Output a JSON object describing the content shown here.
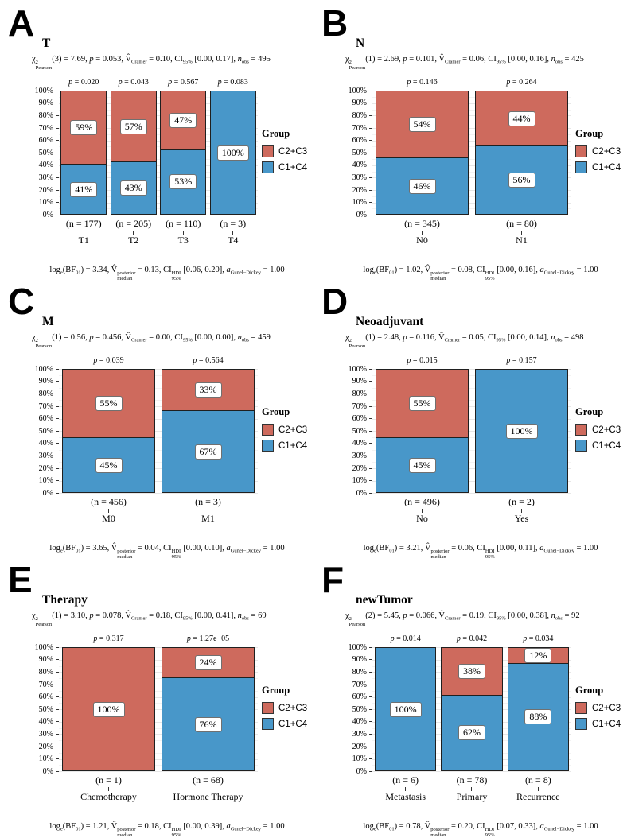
{
  "figure": {
    "legend_title": "Group",
    "groups": [
      {
        "name": "C2+C3",
        "color": "#CE6A5D"
      },
      {
        "name": "C1+C4",
        "color": "#4897C9"
      }
    ],
    "y_ticks": [
      "100%",
      "90%",
      "80%",
      "70%",
      "60%",
      "50%",
      "40%",
      "30%",
      "20%",
      "10%",
      "0%"
    ],
    "labels": {
      "chi": "χ",
      "two": "2",
      "pearson": "Pearson",
      "p": "p",
      "vhat": "V̂",
      "cramer": "Cramer",
      "ci": "CI",
      "pct95": "95%",
      "n": "n",
      "obs": "obs",
      "log": "log",
      "e": "e",
      "bf": "BF",
      "bf_sub": "01",
      "posterior": "posterior",
      "median": "median",
      "hdi": "HDI",
      "a": "a",
      "gunel_dickey": "Gunel−Dickey"
    }
  },
  "chart_data": [
    {
      "type": "bar",
      "stacked": true,
      "panel_letter": "A",
      "title": "T",
      "stats": {
        "df": "3",
        "chi2": "7.69",
        "p": "0.053",
        "v_cramer": "0.10",
        "ci95": "[0.00, 0.17]",
        "n_obs": "495"
      },
      "bayes": {
        "log_bf01": "3.34",
        "v_median": "0.13",
        "ci_hdi": "[0.06, 0.20]",
        "a_gd": "1.00"
      },
      "categories": [
        "T1",
        "T2",
        "T3",
        "T4"
      ],
      "n_labels": [
        "(n = 177)",
        "(n = 205)",
        "(n = 110)",
        "(n = 3)"
      ],
      "bar_p_values": [
        "0.020",
        "0.043",
        "0.567",
        "0.083"
      ],
      "series": [
        {
          "name": "C2+C3",
          "values": [
            59,
            57,
            47,
            0
          ]
        },
        {
          "name": "C1+C4",
          "values": [
            41,
            43,
            53,
            100
          ]
        }
      ],
      "ylim": [
        "0%",
        "100%"
      ]
    },
    {
      "type": "bar",
      "stacked": true,
      "panel_letter": "B",
      "title": "N",
      "stats": {
        "df": "1",
        "chi2": "2.69",
        "p": "0.101",
        "v_cramer": "0.06",
        "ci95": "[0.00, 0.16]",
        "n_obs": "425"
      },
      "bayes": {
        "log_bf01": "1.02",
        "v_median": "0.08",
        "ci_hdi": "[0.00, 0.16]",
        "a_gd": "1.00"
      },
      "categories": [
        "N0",
        "N1"
      ],
      "n_labels": [
        "(n = 345)",
        "(n = 80)"
      ],
      "bar_p_values": [
        "0.146",
        "0.264"
      ],
      "series": [
        {
          "name": "C2+C3",
          "values": [
            54,
            44
          ]
        },
        {
          "name": "C1+C4",
          "values": [
            46,
            56
          ]
        }
      ],
      "ylim": [
        "0%",
        "100%"
      ]
    },
    {
      "type": "bar",
      "stacked": true,
      "panel_letter": "C",
      "title": "M",
      "stats": {
        "df": "1",
        "chi2": "0.56",
        "p": "0.456",
        "v_cramer": "0.00",
        "ci95": "[0.00, 0.00]",
        "n_obs": "459"
      },
      "bayes": {
        "log_bf01": "3.65",
        "v_median": "0.04",
        "ci_hdi": "[0.00, 0.10]",
        "a_gd": "1.00"
      },
      "categories": [
        "M0",
        "M1"
      ],
      "n_labels": [
        "(n = 456)",
        "(n = 3)"
      ],
      "bar_p_values": [
        "0.039",
        "0.564"
      ],
      "series": [
        {
          "name": "C2+C3",
          "values": [
            55,
            33
          ]
        },
        {
          "name": "C1+C4",
          "values": [
            45,
            67
          ]
        }
      ],
      "ylim": [
        "0%",
        "100%"
      ]
    },
    {
      "type": "bar",
      "stacked": true,
      "panel_letter": "D",
      "title": "Neoadjuvant",
      "stats": {
        "df": "1",
        "chi2": "2.48",
        "p": "0.116",
        "v_cramer": "0.05",
        "ci95": "[0.00, 0.14]",
        "n_obs": "498"
      },
      "bayes": {
        "log_bf01": "3.21",
        "v_median": "0.06",
        "ci_hdi": "[0.00, 0.11]",
        "a_gd": "1.00"
      },
      "categories": [
        "No",
        "Yes"
      ],
      "n_labels": [
        "(n = 496)",
        "(n = 2)"
      ],
      "bar_p_values": [
        "0.015",
        "0.157"
      ],
      "series": [
        {
          "name": "C2+C3",
          "values": [
            55,
            0
          ]
        },
        {
          "name": "C1+C4",
          "values": [
            45,
            100
          ]
        }
      ],
      "ylim": [
        "0%",
        "100%"
      ]
    },
    {
      "type": "bar",
      "stacked": true,
      "panel_letter": "E",
      "title": "Therapy",
      "stats": {
        "df": "1",
        "chi2": "3.10",
        "p": "0.078",
        "v_cramer": "0.18",
        "ci95": "[0.00, 0.41]",
        "n_obs": "69"
      },
      "bayes": {
        "log_bf01": "1.21",
        "v_median": "0.18",
        "ci_hdi": "[0.00, 0.39]",
        "a_gd": "1.00"
      },
      "categories": [
        "Chemotherapy",
        "Hormone Therapy"
      ],
      "n_labels": [
        "(n = 1)",
        "(n = 68)"
      ],
      "bar_p_values": [
        "0.317",
        "1.27e−05"
      ],
      "series": [
        {
          "name": "C2+C3",
          "values": [
            100,
            24
          ]
        },
        {
          "name": "C1+C4",
          "values": [
            0,
            76
          ]
        }
      ],
      "ylim": [
        "0%",
        "100%"
      ]
    },
    {
      "type": "bar",
      "stacked": true,
      "panel_letter": "F",
      "title": "newTumor",
      "stats": {
        "df": "2",
        "chi2": "5.45",
        "p": "0.066",
        "v_cramer": "0.19",
        "ci95": "[0.00, 0.38]",
        "n_obs": "92"
      },
      "bayes": {
        "log_bf01": "0.78",
        "v_median": "0.20",
        "ci_hdi": "[0.07, 0.33]",
        "a_gd": "1.00"
      },
      "categories": [
        "Metastasis",
        "Primary",
        "Recurrence"
      ],
      "n_labels": [
        "(n = 6)",
        "(n = 78)",
        "(n = 8)"
      ],
      "bar_p_values": [
        "0.014",
        "0.042",
        "0.034"
      ],
      "series": [
        {
          "name": "C2+C3",
          "values": [
            0,
            38,
            12
          ]
        },
        {
          "name": "C1+C4",
          "values": [
            100,
            62,
            88
          ]
        }
      ],
      "ylim": [
        "0%",
        "100%"
      ]
    }
  ]
}
